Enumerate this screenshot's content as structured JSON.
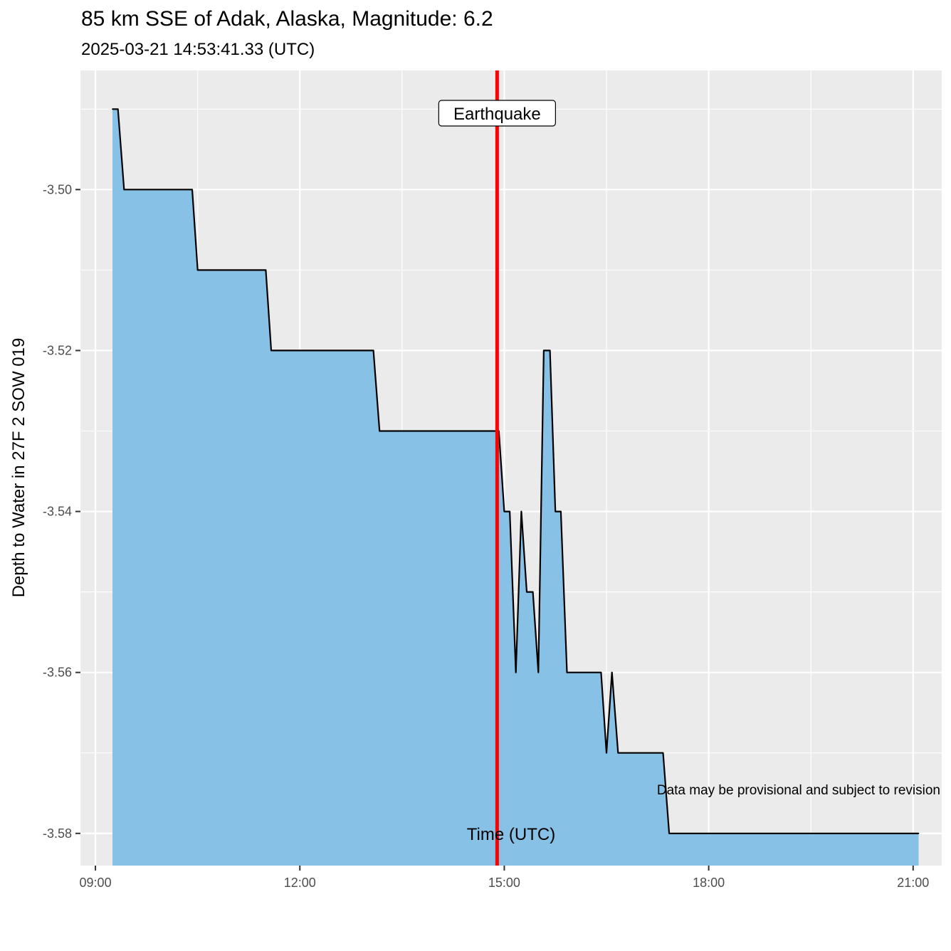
{
  "title": "85 km SSE of Adak, Alaska, Magnitude: 6.2",
  "subtitle": "2025-03-21 14:53:41.33 (UTC)",
  "caption": "Data may be provisional and subject to revision",
  "colors": {
    "panel_bg": "#ebebeb",
    "grid": "#ffffff",
    "area_fill": "#87c1e6",
    "line": "#000000",
    "event_line": "#ff0000"
  },
  "chart_data": {
    "type": "area",
    "title": "85 km SSE of Adak, Alaska, Magnitude: 6.2",
    "subtitle": "2025-03-21 14:53:41.33 (UTC)",
    "xlabel": "Time (UTC)",
    "ylabel": "Depth to Water in 27F 2 SOW 019",
    "x_unit": "hours (UTC, 2025-03-21)",
    "xlim": [
      8.78,
      21.42
    ],
    "ylim": [
      -3.584,
      -3.4852
    ],
    "x_ticks": [
      {
        "value": 9,
        "label": "09:00"
      },
      {
        "value": 12,
        "label": "12:00"
      },
      {
        "value": 15,
        "label": "15:00"
      },
      {
        "value": 18,
        "label": "18:00"
      },
      {
        "value": 21,
        "label": "21:00"
      }
    ],
    "y_ticks": [
      {
        "value": -3.5,
        "label": "-3.50"
      },
      {
        "value": -3.52,
        "label": "-3.52"
      },
      {
        "value": -3.54,
        "label": "-3.54"
      },
      {
        "value": -3.56,
        "label": "-3.56"
      },
      {
        "value": -3.58,
        "label": "-3.58"
      }
    ],
    "grid": true,
    "series": [
      {
        "x": [
          9.25,
          9.33,
          9.42,
          10.42,
          10.5,
          11.5,
          11.58,
          13.08,
          13.17,
          14.83,
          14.92,
          15.0,
          15.08,
          15.17,
          15.25,
          15.33,
          15.42,
          15.5,
          15.58,
          15.67,
          15.75,
          15.83,
          15.92,
          16.42,
          16.5,
          16.58,
          16.67,
          17.33,
          17.42,
          21.08
        ],
        "y": [
          -3.49,
          -3.49,
          -3.5,
          -3.5,
          -3.51,
          -3.51,
          -3.52,
          -3.52,
          -3.53,
          -3.53,
          -3.53,
          -3.54,
          -3.54,
          -3.56,
          -3.54,
          -3.55,
          -3.55,
          -3.56,
          -3.52,
          -3.52,
          -3.54,
          -3.54,
          -3.56,
          -3.56,
          -3.57,
          -3.56,
          -3.57,
          -3.57,
          -3.58,
          -3.58
        ]
      }
    ],
    "annotations": [
      {
        "type": "vline",
        "x": 14.895,
        "label": "Earthquake",
        "color": "#ff0000"
      }
    ]
  }
}
